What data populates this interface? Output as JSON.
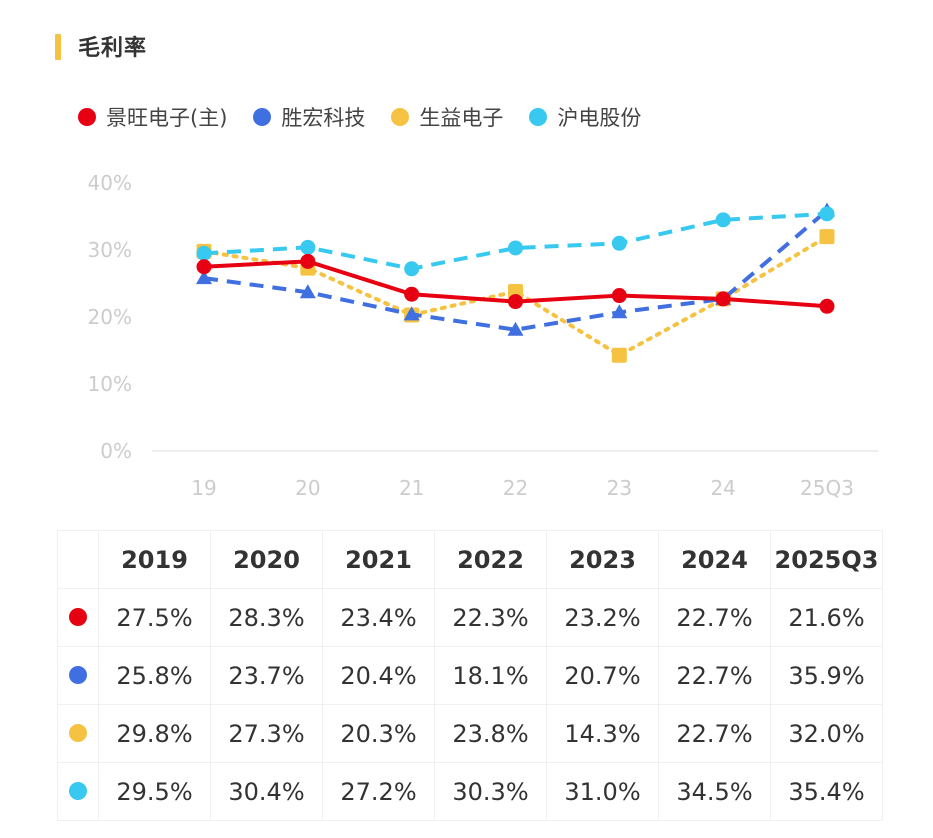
{
  "title": "毛利率",
  "accent_color": "#f5c242",
  "legend": [
    {
      "label": "景旺电子(主)",
      "color": "#e60012"
    },
    {
      "label": "胜宏科技",
      "color": "#3f6fe0"
    },
    {
      "label": "生益电子",
      "color": "#f5c242"
    },
    {
      "label": "沪电股份",
      "color": "#38c9f0"
    }
  ],
  "chart_data": {
    "type": "line",
    "title": "毛利率",
    "xlabel": "",
    "ylabel": "",
    "x": [
      "19",
      "20",
      "21",
      "22",
      "23",
      "24",
      "25Q3"
    ],
    "yticks": [
      "0%",
      "10%",
      "20%",
      "30%",
      "40%"
    ],
    "ylim": [
      0,
      40
    ],
    "grid": false,
    "legend_position": "top-left",
    "series": [
      {
        "name": "景旺电子(主)",
        "color": "#e60012",
        "style": "solid",
        "marker": "circle",
        "values": [
          27.5,
          28.3,
          23.4,
          22.3,
          23.2,
          22.7,
          21.6
        ]
      },
      {
        "name": "胜宏科技",
        "color": "#3f6fe0",
        "style": "dashed",
        "marker": "triangle",
        "values": [
          25.8,
          23.7,
          20.4,
          18.1,
          20.7,
          22.7,
          35.9
        ]
      },
      {
        "name": "生益电子",
        "color": "#f5c242",
        "style": "dotted",
        "marker": "square",
        "values": [
          29.8,
          27.3,
          20.3,
          23.8,
          14.3,
          22.7,
          32.0
        ]
      },
      {
        "name": "沪电股份",
        "color": "#38c9f0",
        "style": "dashed",
        "marker": "circle",
        "values": [
          29.5,
          30.4,
          27.2,
          30.3,
          31.0,
          34.5,
          35.4
        ]
      }
    ]
  },
  "table": {
    "headers": [
      "2019",
      "2020",
      "2021",
      "2022",
      "2023",
      "2024",
      "2025Q3"
    ],
    "rows": [
      {
        "color": "#e60012",
        "cells": [
          "27.5%",
          "28.3%",
          "23.4%",
          "22.3%",
          "23.2%",
          "22.7%",
          "21.6%"
        ]
      },
      {
        "color": "#3f6fe0",
        "cells": [
          "25.8%",
          "23.7%",
          "20.4%",
          "18.1%",
          "20.7%",
          "22.7%",
          "35.9%"
        ]
      },
      {
        "color": "#f5c242",
        "cells": [
          "29.8%",
          "27.3%",
          "20.3%",
          "23.8%",
          "14.3%",
          "22.7%",
          "32.0%"
        ]
      },
      {
        "color": "#38c9f0",
        "cells": [
          "29.5%",
          "30.4%",
          "27.2%",
          "30.3%",
          "31.0%",
          "34.5%",
          "35.4%"
        ]
      }
    ]
  }
}
